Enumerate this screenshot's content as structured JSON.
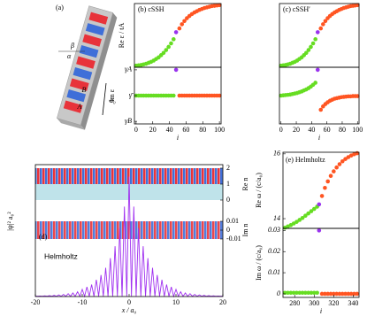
{
  "diagram": {
    "label": "(a)",
    "beta": "β",
    "alpha": "α",
    "b": "B",
    "a": "A",
    "a0": "a₀"
  },
  "chart_data": [
    {
      "type": "scatter",
      "title": "(b) cSSH",
      "ylabel": "Re ε / tA",
      "xlim": [
        -2,
        102
      ],
      "ylim": [
        -1,
        1
      ],
      "series": [
        {
          "color": "#66dd22",
          "x": [
            0,
            3,
            6,
            9,
            12,
            15,
            18,
            21,
            24,
            27,
            30,
            33,
            36,
            39,
            42,
            45
          ],
          "values": [
            -0.95,
            -0.94,
            -0.93,
            -0.91,
            -0.89,
            -0.86,
            -0.83,
            -0.79,
            -0.74,
            -0.69,
            -0.62,
            -0.55,
            -0.46,
            -0.36,
            -0.25,
            -0.12
          ]
        },
        {
          "color": "#9933ee",
          "x": [
            48
          ],
          "values": [
            0.1
          ]
        },
        {
          "color": "#ff5522",
          "x": [
            52,
            55,
            58,
            61,
            64,
            67,
            70,
            73,
            76,
            79,
            82,
            85,
            88,
            91,
            94,
            97,
            100
          ],
          "values": [
            0.22,
            0.35,
            0.45,
            0.54,
            0.61,
            0.67,
            0.72,
            0.76,
            0.8,
            0.83,
            0.86,
            0.88,
            0.9,
            0.92,
            0.93,
            0.94,
            0.95
          ]
        }
      ]
    },
    {
      "type": "scatter",
      "ylabel": "Im ε",
      "xlabel": "i",
      "xlim": [
        -2,
        102
      ],
      "ylim": [
        -1.1,
        1.1
      ],
      "xticks": [
        0,
        20,
        40,
        60,
        80,
        100
      ],
      "yticks": [
        {
          "value": 1,
          "label": "γA"
        },
        {
          "value": 0,
          "label": "γ̄"
        },
        {
          "value": -1,
          "label": "γB"
        }
      ],
      "series": [
        {
          "color": "#66dd22",
          "x": [
            0,
            3,
            6,
            9,
            12,
            15,
            18,
            21,
            24,
            27,
            30,
            33,
            36,
            39,
            42,
            45
          ],
          "values": [
            0,
            0,
            0,
            0,
            0,
            0,
            0,
            0,
            0,
            0,
            0,
            0,
            0,
            0,
            0,
            0
          ]
        },
        {
          "color": "#9933ee",
          "x": [
            48
          ],
          "values": [
            1
          ]
        },
        {
          "color": "#ff5522",
          "x": [
            52,
            55,
            58,
            61,
            64,
            67,
            70,
            73,
            76,
            79,
            82,
            85,
            88,
            91,
            94,
            97,
            100
          ],
          "values": [
            0,
            0,
            0,
            0,
            0,
            0,
            0,
            0,
            0,
            0,
            0,
            0,
            0,
            0,
            0,
            0,
            0
          ]
        }
      ]
    },
    {
      "type": "scatter",
      "title": "(c) cSSH′",
      "xlim": [
        -2,
        102
      ],
      "ylim": [
        -1,
        1
      ],
      "series": [
        {
          "color": "#66dd22",
          "x": [
            0,
            3,
            6,
            9,
            12,
            15,
            18,
            21,
            24,
            27,
            30,
            33,
            36,
            39,
            42,
            45
          ],
          "values": [
            -0.95,
            -0.94,
            -0.93,
            -0.91,
            -0.89,
            -0.86,
            -0.83,
            -0.79,
            -0.74,
            -0.69,
            -0.62,
            -0.55,
            -0.46,
            -0.36,
            -0.25,
            -0.12
          ]
        },
        {
          "color": "#9933ee",
          "x": [
            48
          ],
          "values": [
            0.1
          ]
        },
        {
          "color": "#ff5522",
          "x": [
            52,
            55,
            58,
            61,
            64,
            67,
            70,
            73,
            76,
            79,
            82,
            85,
            88,
            91,
            94,
            97,
            100
          ],
          "values": [
            0.22,
            0.35,
            0.45,
            0.54,
            0.61,
            0.67,
            0.72,
            0.76,
            0.8,
            0.83,
            0.86,
            0.88,
            0.9,
            0.92,
            0.93,
            0.94,
            0.95
          ]
        }
      ]
    },
    {
      "type": "scatter",
      "xlabel": "i",
      "xlim": [
        -2,
        102
      ],
      "ylim": [
        -1.1,
        1.1
      ],
      "xticks": [
        0,
        20,
        40,
        60,
        80,
        100
      ],
      "series": [
        {
          "color": "#66dd22",
          "x": [
            0,
            3,
            6,
            9,
            12,
            15,
            18,
            21,
            24,
            27,
            30,
            33,
            36,
            39,
            42,
            45
          ],
          "values": [
            0,
            0.01,
            0.02,
            0.03,
            0.04,
            0.06,
            0.08,
            0.1,
            0.13,
            0.16,
            0.2,
            0.24,
            0.29,
            0.35,
            0.42,
            0.5
          ]
        },
        {
          "color": "#9933ee",
          "x": [
            48
          ],
          "values": [
            1
          ]
        },
        {
          "color": "#ff5522",
          "x": [
            52,
            55,
            58,
            61,
            64,
            67,
            70,
            73,
            76,
            79,
            82,
            85,
            88,
            91,
            94,
            97,
            100
          ],
          "values": [
            -0.55,
            -0.42,
            -0.33,
            -0.26,
            -0.2,
            -0.16,
            -0.12,
            -0.1,
            -0.08,
            -0.06,
            -0.05,
            -0.04,
            -0.03,
            -0.03,
            -0.02,
            -0.02,
            -0.02
          ]
        }
      ]
    },
    {
      "type": "line",
      "title": "(d)",
      "annotation": "Helmholtz",
      "xlabel": "x / a₀",
      "ylabel": "|ψ|² a₀²",
      "xlim": [
        -20,
        20
      ],
      "xticks": [
        -20,
        -10,
        0,
        10,
        20
      ],
      "ylim": [
        0,
        1.1
      ],
      "color": "#a030f0",
      "x": [
        -20,
        -19.5,
        -19,
        -18.5,
        -18,
        -17.5,
        -17,
        -16.5,
        -16,
        -15.5,
        -15,
        -14.5,
        -14,
        -13.5,
        -13,
        -12.5,
        -12,
        -11.5,
        -11,
        -10.5,
        -10,
        -9.5,
        -9,
        -8.5,
        -8,
        -7.5,
        -7,
        -6.5,
        -6,
        -5.5,
        -5,
        -4.5,
        -4,
        -3.5,
        -3,
        -2.5,
        -2,
        -1.5,
        -1,
        -0.5,
        0,
        0.5,
        1,
        1.5,
        2,
        2.5,
        3,
        3.5,
        4,
        4.5,
        5,
        5.5,
        6,
        6.5,
        7,
        7.5,
        8,
        8.5,
        9,
        9.5,
        10,
        10.5,
        11,
        11.5,
        12,
        12.5,
        13,
        13.5,
        14,
        14.5,
        15,
        15.5,
        16,
        16.5,
        17,
        17.5,
        18,
        18.5,
        19,
        19.5,
        20
      ],
      "values": [
        0.003,
        0.002,
        0.004,
        0.002,
        0.006,
        0.002,
        0.008,
        0.002,
        0.01,
        0.002,
        0.014,
        0.002,
        0.018,
        0.002,
        0.024,
        0.002,
        0.03,
        0.002,
        0.04,
        0.002,
        0.06,
        0.002,
        0.08,
        0.002,
        0.1,
        0.002,
        0.14,
        0.002,
        0.18,
        0.002,
        0.24,
        0.002,
        0.32,
        0.002,
        0.42,
        0.002,
        0.57,
        0.002,
        0.75,
        0.002,
        1,
        0.002,
        0.75,
        0.002,
        0.57,
        0.002,
        0.42,
        0.002,
        0.32,
        0.002,
        0.24,
        0.002,
        0.18,
        0.002,
        0.14,
        0.002,
        0.1,
        0.002,
        0.08,
        0.002,
        0.06,
        0.002,
        0.04,
        0.002,
        0.03,
        0.002,
        0.024,
        0.002,
        0.018,
        0.002,
        0.014,
        0.002,
        0.01,
        0.002,
        0.008,
        0.002,
        0.006,
        0.002,
        0.004,
        0.002,
        0.003
      ],
      "re_n": {
        "label": "Re n",
        "ylim": [
          0,
          2
        ],
        "yticks": [
          2,
          1,
          0
        ]
      },
      "im_n": {
        "label": "Im n",
        "ylim": [
          -0.01,
          0.01
        ],
        "yticks": [
          0.01,
          0,
          -0.01
        ]
      }
    },
    {
      "type": "scatter",
      "title": "(e) Helmholtz",
      "ylabel": "Re ω / (c/a₀)",
      "xlim": [
        268,
        346
      ],
      "ylim": [
        13.7,
        16.05
      ],
      "yticks": [
        14,
        16
      ],
      "series": [
        {
          "color": "#66dd22",
          "x": [
            270,
            273,
            276,
            279,
            282,
            285,
            288,
            291,
            294,
            297,
            300,
            303
          ],
          "values": [
            13.72,
            13.76,
            13.8,
            13.85,
            13.9,
            13.96,
            14.02,
            14.09,
            14.16,
            14.23,
            14.3,
            14.37
          ]
        },
        {
          "color": "#9933ee",
          "x": [
            305
          ],
          "values": [
            14.44
          ]
        },
        {
          "color": "#ff5522",
          "x": [
            308,
            311,
            314,
            317,
            320,
            323,
            326,
            329,
            332,
            335,
            338,
            341,
            344
          ],
          "values": [
            14.7,
            14.95,
            15.15,
            15.32,
            15.46,
            15.58,
            15.68,
            15.77,
            15.84,
            15.9,
            15.95,
            15.99,
            16.02
          ]
        }
      ]
    },
    {
      "type": "scatter",
      "ylabel": "Im ω / (c/a₀)",
      "xlabel": "i",
      "xlim": [
        268,
        346
      ],
      "ylim": [
        -0.0017,
        0.031
      ],
      "xticks": [
        280,
        300,
        320,
        340
      ],
      "yticks": [
        0,
        0.01,
        0.02,
        0.03
      ],
      "series": [
        {
          "color": "#66dd22",
          "x": [
            270,
            273,
            276,
            279,
            282,
            285,
            288,
            291,
            294,
            297,
            300,
            303
          ],
          "values": [
            0.0005,
            0.0005,
            0.0005,
            0.0005,
            0.0005,
            0.0005,
            0.0005,
            0.0005,
            0.0005,
            0.0005,
            0.0005,
            0.0005
          ]
        },
        {
          "color": "#9933ee",
          "x": [
            305
          ],
          "values": [
            0.03
          ]
        },
        {
          "color": "#ff5522",
          "x": [
            308,
            311,
            314,
            317,
            320,
            323,
            326,
            329,
            332,
            335,
            338,
            341,
            344
          ],
          "values": [
            0,
            0,
            0,
            0,
            0,
            0,
            0,
            0,
            0,
            0,
            0,
            0,
            0
          ]
        }
      ]
    }
  ]
}
